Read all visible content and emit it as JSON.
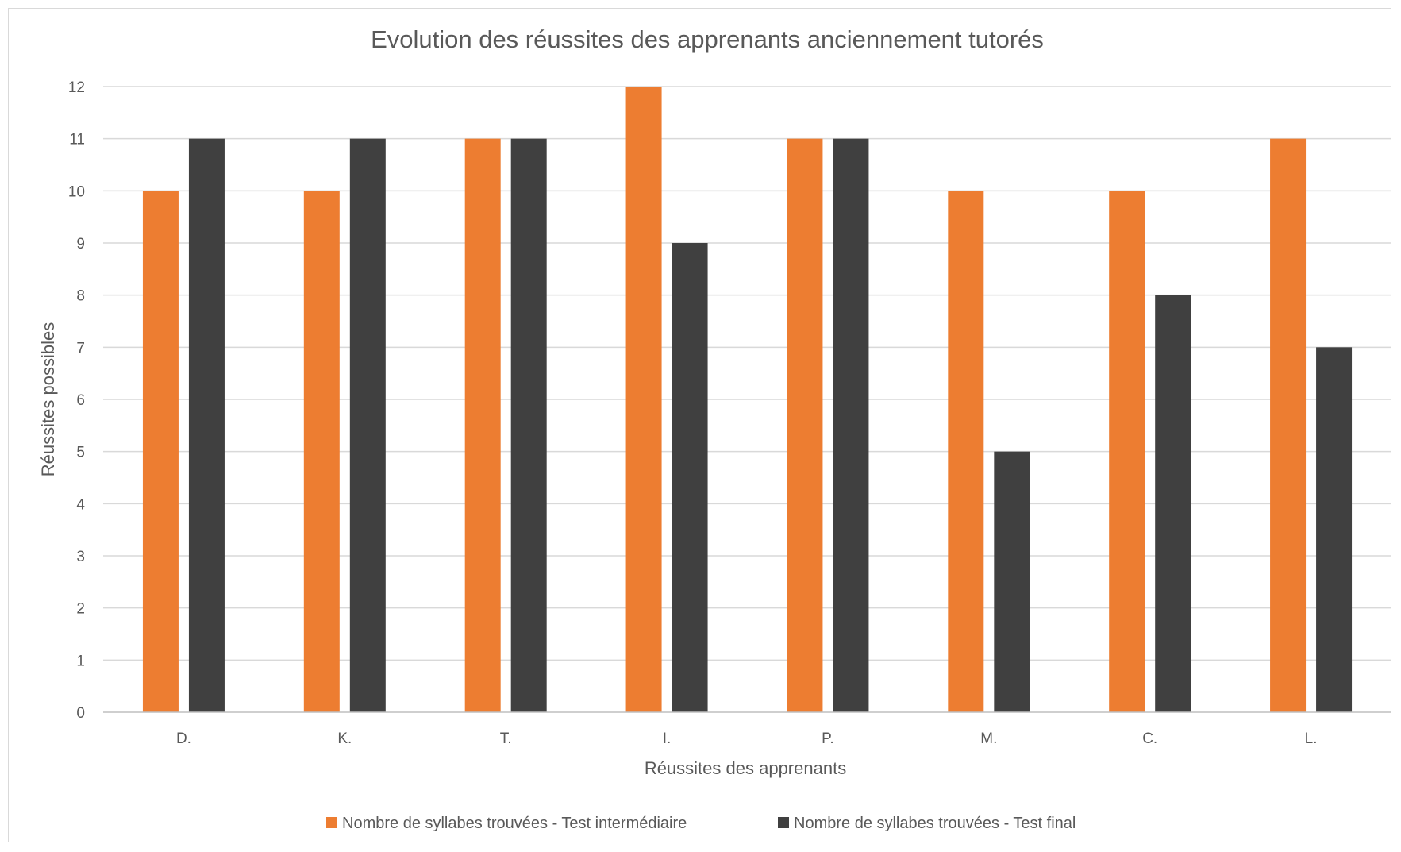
{
  "chart_data": {
    "type": "bar",
    "title": "Evolution des réussites des apprenants anciennement tutorés",
    "xlabel": "Réussites des apprenants",
    "ylabel": "Réussites possibles",
    "categories": [
      "D.",
      "K.",
      "T.",
      "I.",
      "P.",
      "M.",
      "C.",
      "L."
    ],
    "series": [
      {
        "name": "Nombre de syllabes trouvées - Test intermédiaire",
        "color": "#ed7d31",
        "values": [
          10,
          10,
          11,
          12,
          11,
          10,
          10,
          11
        ]
      },
      {
        "name": "Nombre de syllabes trouvées - Test final",
        "color": "#404040",
        "values": [
          11,
          11,
          11,
          9,
          11,
          5,
          8,
          7
        ]
      }
    ],
    "ylim": [
      0,
      12
    ],
    "yticks": [
      0,
      1,
      2,
      3,
      4,
      5,
      6,
      7,
      8,
      9,
      10,
      11,
      12
    ],
    "grid": true,
    "legend_position": "bottom"
  }
}
